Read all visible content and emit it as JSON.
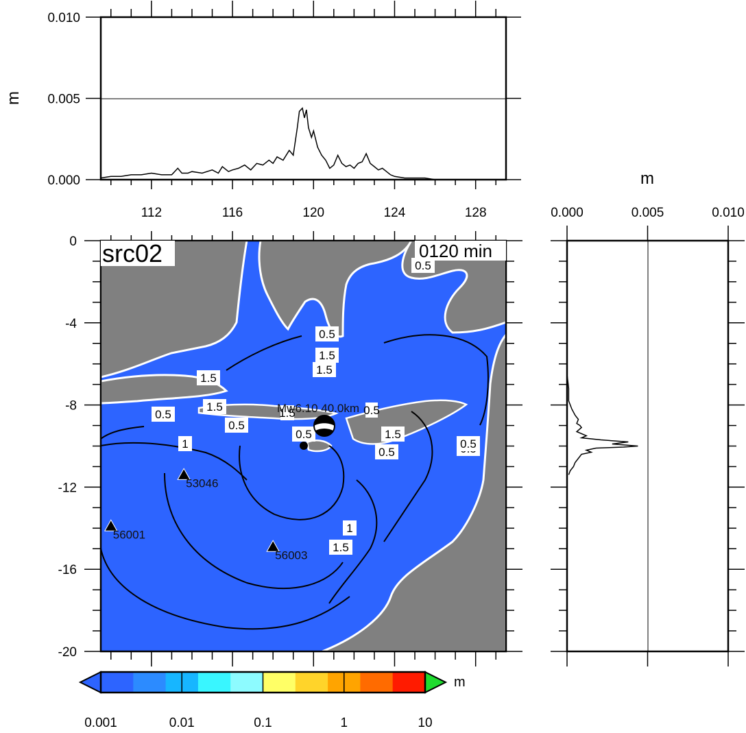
{
  "figure": {
    "source_label": "src02",
    "time_label": "0120 min"
  },
  "chart_data": [
    {
      "type": "line",
      "name": "longitude-profile",
      "xlabel": "",
      "ylabel": "m",
      "xlim": [
        109.5,
        129.5
      ],
      "ylim": [
        0,
        0.01
      ],
      "x_ticks": [
        112,
        116,
        120,
        124,
        128
      ],
      "y_ticks": [
        0.0,
        0.005,
        0.01
      ],
      "y_tick_labels": [
        "0.000",
        "0.005",
        "0.010"
      ],
      "gridlines_y": [
        0.005
      ],
      "x": [
        109.5,
        110,
        110.5,
        111,
        111.5,
        112,
        112.5,
        113,
        113.3,
        113.5,
        113.8,
        114,
        114.5,
        115,
        115.3,
        115.5,
        115.8,
        116,
        116.3,
        116.6,
        116.9,
        117.2,
        117.5,
        117.8,
        118,
        118.2,
        118.5,
        118.8,
        119,
        119.2,
        119.3,
        119.45,
        119.55,
        119.65,
        119.75,
        119.9,
        120,
        120.2,
        120.4,
        120.6,
        120.8,
        121,
        121.2,
        121.4,
        121.6,
        121.8,
        122,
        122.2,
        122.4,
        122.6,
        122.8,
        123,
        123.2,
        123.4,
        123.6,
        123.8,
        124,
        124.5,
        125,
        125.5,
        126,
        127,
        128,
        129.3
      ],
      "values": [
        0.0001,
        0.0002,
        0.0002,
        0.0003,
        0.0003,
        0.0004,
        0.0003,
        0.0003,
        0.0007,
        0.0004,
        0.0004,
        0.0005,
        0.0004,
        0.0006,
        0.0004,
        0.0008,
        0.0005,
        0.0006,
        0.0007,
        0.0009,
        0.0006,
        0.001,
        0.0009,
        0.0012,
        0.001,
        0.0014,
        0.0012,
        0.0018,
        0.0015,
        0.0032,
        0.0042,
        0.0044,
        0.0038,
        0.0043,
        0.0032,
        0.0026,
        0.003,
        0.002,
        0.0015,
        0.0012,
        0.0007,
        0.0009,
        0.0015,
        0.001,
        0.0008,
        0.0009,
        0.0007,
        0.001,
        0.0011,
        0.0016,
        0.001,
        0.0008,
        0.0006,
        0.0007,
        0.0005,
        0.0003,
        0.0002,
        0.0001,
        0.0001,
        0.0001,
        0.0,
        0.0,
        0.0,
        0.0
      ]
    },
    {
      "type": "line",
      "name": "latitude-profile",
      "xlabel": "m",
      "ylabel": "",
      "xlim": [
        0,
        0.01
      ],
      "ylim": [
        -20,
        0
      ],
      "x_ticks": [
        0.0,
        0.005,
        0.01
      ],
      "x_tick_labels": [
        "0.000",
        "0.005",
        "0.010"
      ],
      "gridlines_x": [
        0.005
      ],
      "lat": [
        -5.8,
        -6.5,
        -7.2,
        -7.8,
        -8.2,
        -8.5,
        -8.7,
        -8.9,
        -9.0,
        -9.1,
        -9.3,
        -9.5,
        -9.6,
        -9.7,
        -9.8,
        -9.9,
        -10.0,
        -10.05,
        -10.1,
        -10.2,
        -10.3,
        -10.4,
        -10.6,
        -10.8,
        -11.0,
        -11.2,
        -11.4
      ],
      "values": [
        0.0,
        0.0,
        0.0001,
        0.0001,
        0.0003,
        0.0005,
        0.0007,
        0.0006,
        0.0008,
        0.0009,
        0.0006,
        0.0012,
        0.0009,
        0.0021,
        0.0038,
        0.0028,
        0.0044,
        0.0035,
        0.0018,
        0.0012,
        0.0015,
        0.0009,
        0.0007,
        0.0005,
        0.0004,
        0.0002,
        0.0001
      ]
    },
    {
      "type": "heatmap",
      "name": "max-amplitude-map",
      "xlim": [
        109.5,
        129.5
      ],
      "ylim": [
        -20,
        0
      ],
      "y_ticks": [
        0,
        -4,
        -8,
        -12,
        -16,
        -20
      ],
      "y_tick_labels": [
        "0",
        "-4",
        "-8",
        "-12",
        "-16",
        "-20"
      ],
      "colorbar": {
        "unit": "m",
        "scale": "log",
        "tick_values": [
          0.001,
          0.01,
          0.1,
          1,
          10
        ],
        "tick_labels": [
          "0.001",
          "0.01",
          "0.1",
          "1",
          "10"
        ],
        "colors": [
          "#2d64ff",
          "#2c8bff",
          "#17b6ff",
          "#39f6ff",
          "#8dfbff",
          "#ffff66",
          "#ffd42a",
          "#ffa400",
          "#ff6b00",
          "#ff1b00"
        ],
        "below_color": "#2d64ff",
        "above_color": "#1fdc2f"
      },
      "contour_labels": [
        "0.5",
        "0.5",
        "0.5",
        "0.5",
        "0.5",
        "1",
        "1",
        "1.5",
        "1.5",
        "1.5",
        "1.5",
        "1.5",
        "1.5",
        "0.5",
        "0.5",
        "1.5",
        "0.5",
        "0.5"
      ],
      "stations": [
        {
          "id": "53046",
          "lon": 113.6,
          "lat": -11.4
        },
        {
          "id": "56001",
          "lon": 110.0,
          "lat": -13.9
        },
        {
          "id": "56003",
          "lon": 118.0,
          "lat": -14.9
        }
      ],
      "event": {
        "label": "Mw6.10  40.0km",
        "lon": 120.4,
        "lat": -9.0
      },
      "epicenter": {
        "lon": 119.4,
        "lat": -10.0
      },
      "land_color": "#808080",
      "ocean_color": "#2d64ff"
    }
  ]
}
